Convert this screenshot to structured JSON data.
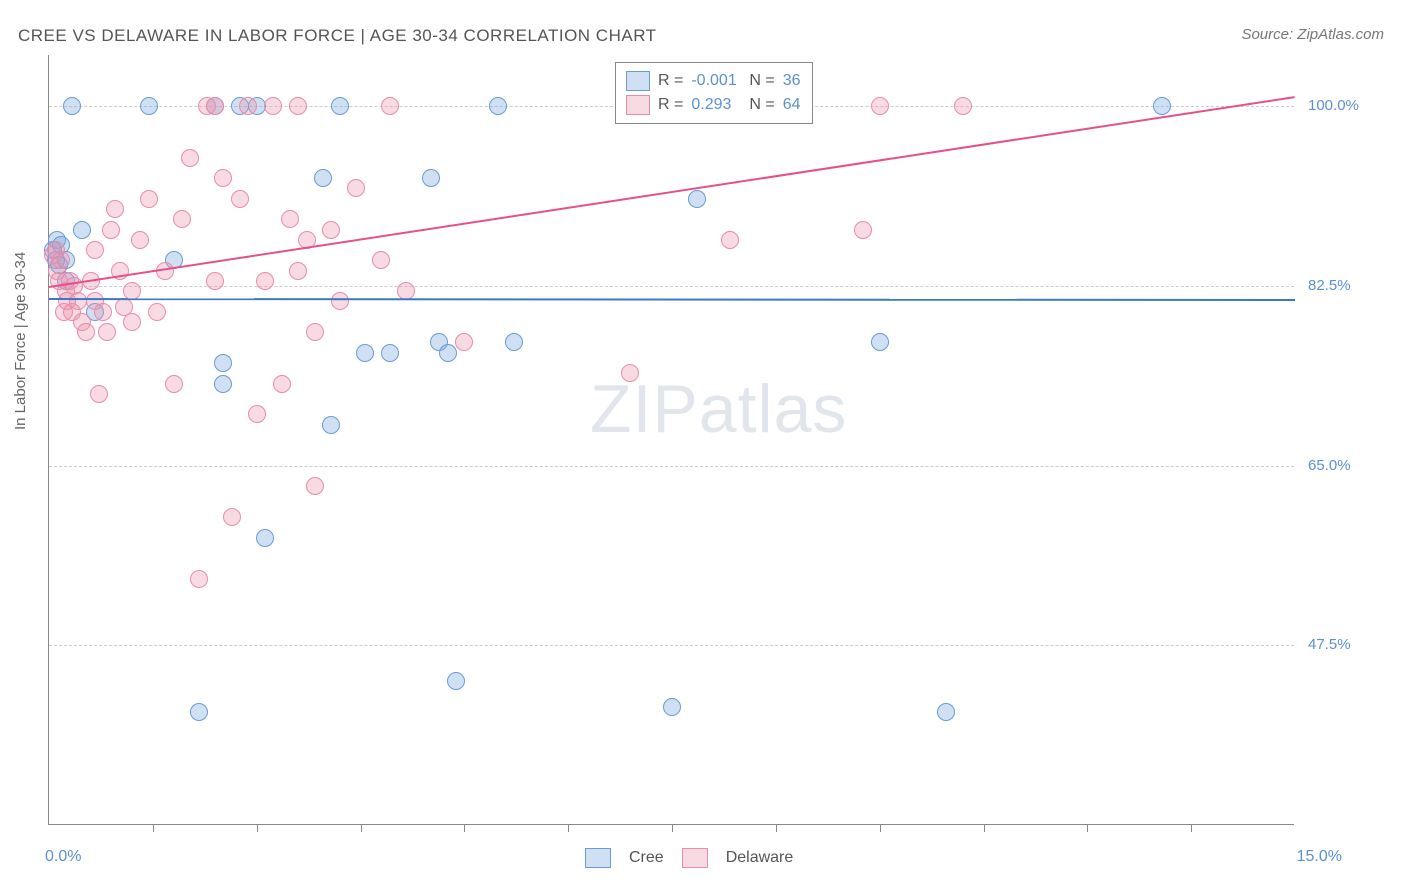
{
  "title": "CREE VS DELAWARE IN LABOR FORCE | AGE 30-34 CORRELATION CHART",
  "source": "Source: ZipAtlas.com",
  "ylabel": "In Labor Force | Age 30-34",
  "watermark_zip": "ZIP",
  "watermark_atlas": "atlas",
  "chart": {
    "type": "scatter",
    "xlim": [
      0.0,
      15.0
    ],
    "ylim": [
      30.0,
      105.0
    ],
    "x_min_label": "0.0%",
    "x_max_label": "15.0%",
    "x_ticks": [
      1.25,
      2.5,
      3.75,
      5.0,
      6.25,
      7.5,
      8.75,
      10.0,
      11.25,
      12.5,
      13.75
    ],
    "y_gridlines": [
      47.5,
      65.0,
      82.5,
      100.0
    ],
    "y_labels": [
      "47.5%",
      "65.0%",
      "82.5%",
      "100.0%"
    ],
    "background_color": "#ffffff",
    "grid_color": "#cccccc",
    "axis_color": "#888888",
    "ylabel_color": "#5b8fd6",
    "series": [
      {
        "name": "Cree",
        "fill": "rgba(120,165,220,0.35)",
        "stroke": "#6a9bd8",
        "r": 9,
        "R": -0.001,
        "N": 36,
        "trend": {
          "y_at_x0": 81.3,
          "y_at_x15": 81.2,
          "color": "#3b78c9",
          "width": 2
        },
        "points": [
          [
            0.05,
            86.0
          ],
          [
            0.08,
            85.0
          ],
          [
            0.1,
            87.0
          ],
          [
            0.12,
            84.5
          ],
          [
            0.15,
            86.5
          ],
          [
            0.2,
            85.0
          ],
          [
            0.2,
            83.0
          ],
          [
            0.28,
            100.0
          ],
          [
            0.4,
            88.0
          ],
          [
            0.55,
            80.0
          ],
          [
            1.2,
            100.0
          ],
          [
            1.5,
            85.0
          ],
          [
            1.8,
            41.0
          ],
          [
            2.0,
            100.0
          ],
          [
            2.1,
            75.0
          ],
          [
            2.1,
            73.0
          ],
          [
            2.3,
            100.0
          ],
          [
            2.5,
            100.0
          ],
          [
            2.6,
            58.0
          ],
          [
            3.3,
            93.0
          ],
          [
            3.4,
            69.0
          ],
          [
            3.5,
            100.0
          ],
          [
            3.8,
            76.0
          ],
          [
            4.1,
            76.0
          ],
          [
            4.6,
            93.0
          ],
          [
            4.7,
            77.0
          ],
          [
            4.8,
            76.0
          ],
          [
            4.9,
            44.0
          ],
          [
            5.4,
            100.0
          ],
          [
            5.6,
            77.0
          ],
          [
            7.5,
            41.5
          ],
          [
            7.8,
            91.0
          ],
          [
            7.8,
            100.0
          ],
          [
            10.0,
            77.0
          ],
          [
            10.8,
            41.0
          ],
          [
            13.4,
            100.0
          ]
        ]
      },
      {
        "name": "Delaware",
        "fill": "rgba(235,150,175,0.35)",
        "stroke": "#e98bad",
        "r": 9,
        "R": 0.293,
        "N": 64,
        "trend": {
          "y_at_x0": 82.5,
          "y_at_x15": 101.0,
          "color": "#e84f8a",
          "width": 2
        },
        "points": [
          [
            0.05,
            85.5
          ],
          [
            0.08,
            86.0
          ],
          [
            0.1,
            84.0
          ],
          [
            0.12,
            83.0
          ],
          [
            0.15,
            85.0
          ],
          [
            0.18,
            80.0
          ],
          [
            0.2,
            82.0
          ],
          [
            0.22,
            81.0
          ],
          [
            0.25,
            83.0
          ],
          [
            0.28,
            80.0
          ],
          [
            0.3,
            82.5
          ],
          [
            0.35,
            81.0
          ],
          [
            0.4,
            79.0
          ],
          [
            0.45,
            78.0
          ],
          [
            0.5,
            83.0
          ],
          [
            0.55,
            86.0
          ],
          [
            0.55,
            81.0
          ],
          [
            0.6,
            72.0
          ],
          [
            0.65,
            80.0
          ],
          [
            0.7,
            78.0
          ],
          [
            0.75,
            88.0
          ],
          [
            0.8,
            90.0
          ],
          [
            0.85,
            84.0
          ],
          [
            0.9,
            80.5
          ],
          [
            1.0,
            82.0
          ],
          [
            1.0,
            79.0
          ],
          [
            1.1,
            87.0
          ],
          [
            1.2,
            91.0
          ],
          [
            1.3,
            80.0
          ],
          [
            1.4,
            84.0
          ],
          [
            1.5,
            73.0
          ],
          [
            1.6,
            89.0
          ],
          [
            1.7,
            95.0
          ],
          [
            1.8,
            54.0
          ],
          [
            1.9,
            100.0
          ],
          [
            2.0,
            83.0
          ],
          [
            2.0,
            100.0
          ],
          [
            2.1,
            93.0
          ],
          [
            2.2,
            60.0
          ],
          [
            2.3,
            91.0
          ],
          [
            2.4,
            100.0
          ],
          [
            2.5,
            70.0
          ],
          [
            2.6,
            83.0
          ],
          [
            2.7,
            100.0
          ],
          [
            2.8,
            73.0
          ],
          [
            2.9,
            89.0
          ],
          [
            3.0,
            84.0
          ],
          [
            3.0,
            100.0
          ],
          [
            3.1,
            87.0
          ],
          [
            3.2,
            63.0
          ],
          [
            3.2,
            78.0
          ],
          [
            3.4,
            88.0
          ],
          [
            3.5,
            81.0
          ],
          [
            3.7,
            92.0
          ],
          [
            4.0,
            85.0
          ],
          [
            4.1,
            100.0
          ],
          [
            4.3,
            82.0
          ],
          [
            5.0,
            77.0
          ],
          [
            7.0,
            74.0
          ],
          [
            8.2,
            87.0
          ],
          [
            9.0,
            100.0
          ],
          [
            9.8,
            88.0
          ],
          [
            10.0,
            100.0
          ],
          [
            11.0,
            100.0
          ]
        ]
      }
    ]
  },
  "legend": {
    "R_label": "R =",
    "N_label": "N ="
  },
  "bottom_legend": {
    "items": [
      "Cree",
      "Delaware"
    ]
  }
}
